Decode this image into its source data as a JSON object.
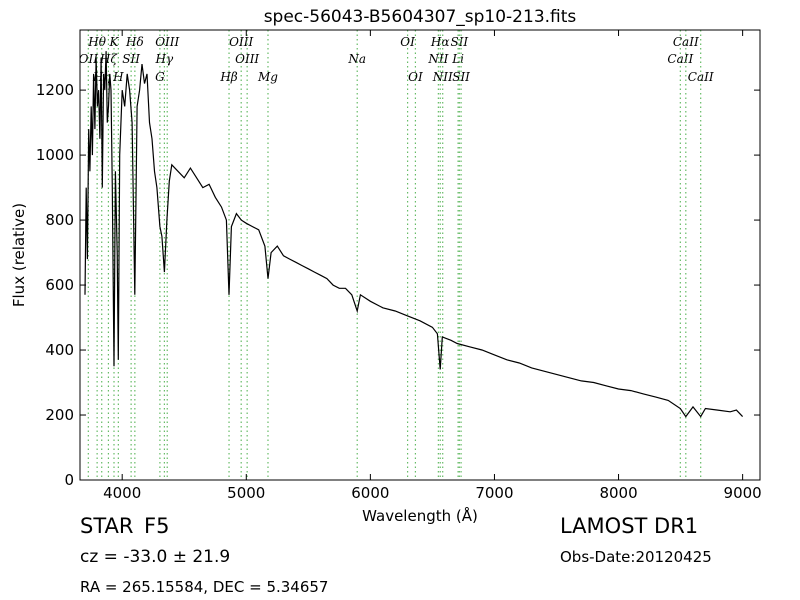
{
  "chart_data": {
    "type": "line",
    "title": "spec-56043-B5604307_sp10-213.fits",
    "x_label": "Wavelength (Å)",
    "y_label": "Flux (relative)",
    "xlim": [
      3660,
      9140
    ],
    "ylim": [
      0,
      1385
    ],
    "xticks": [
      4000,
      5000,
      6000,
      7000,
      8000,
      9000
    ],
    "yticks": [
      0,
      200,
      400,
      600,
      800,
      1000,
      1200
    ],
    "marker_color": "#66bb66",
    "lines": [
      {
        "label": "OII",
        "x": 3727
      },
      {
        "label": "Hθ",
        "x": 3798
      },
      {
        "label": "Hη",
        "x": 3835
      },
      {
        "label": "Hζ",
        "x": 3889
      },
      {
        "label": "K",
        "x": 3934
      },
      {
        "label": "H",
        "x": 3969
      },
      {
        "label": "SII",
        "x": 4072
      },
      {
        "label": "Hδ",
        "x": 4102
      },
      {
        "label": "G",
        "x": 4304
      },
      {
        "label": "Hγ",
        "x": 4340
      },
      {
        "label": "OIII",
        "x": 4363
      },
      {
        "label": "Hβ",
        "x": 4861
      },
      {
        "label": "OIII",
        "x": 4959
      },
      {
        "label": "OIII",
        "x": 5007
      },
      {
        "label": "Mg",
        "x": 5175
      },
      {
        "label": "Na",
        "x": 5894
      },
      {
        "label": "OI",
        "x": 6300
      },
      {
        "label": "OI",
        "x": 6363
      },
      {
        "label": "NII",
        "x": 6548
      },
      {
        "label": "Hα",
        "x": 6563
      },
      {
        "label": "NII",
        "x": 6583
      },
      {
        "label": "Li",
        "x": 6707
      },
      {
        "label": "SII",
        "x": 6717
      },
      {
        "label": "SII",
        "x": 6731
      },
      {
        "label": "CaII",
        "x": 8498
      },
      {
        "label": "CaII",
        "x": 8542
      },
      {
        "label": "CaII",
        "x": 8662
      }
    ],
    "series": [
      {
        "name": "flux",
        "color": "#000000",
        "x": [
          3700,
          3710,
          3720,
          3730,
          3740,
          3750,
          3760,
          3770,
          3780,
          3790,
          3800,
          3810,
          3820,
          3830,
          3840,
          3850,
          3860,
          3870,
          3880,
          3890,
          3900,
          3910,
          3920,
          3934,
          3945,
          3960,
          3969,
          3980,
          4000,
          4020,
          4040,
          4060,
          4080,
          4102,
          4120,
          4140,
          4160,
          4180,
          4200,
          4220,
          4240,
          4260,
          4280,
          4304,
          4320,
          4340,
          4360,
          4380,
          4400,
          4450,
          4500,
          4550,
          4600,
          4650,
          4700,
          4750,
          4800,
          4840,
          4861,
          4880,
          4920,
          4960,
          5000,
          5050,
          5100,
          5150,
          5175,
          5200,
          5250,
          5300,
          5350,
          5400,
          5450,
          5500,
          5550,
          5600,
          5650,
          5700,
          5750,
          5800,
          5850,
          5894,
          5920,
          6000,
          6100,
          6200,
          6300,
          6400,
          6500,
          6540,
          6563,
          6580,
          6650,
          6700,
          6800,
          6900,
          7000,
          7100,
          7200,
          7300,
          7400,
          7500,
          7600,
          7700,
          7800,
          7900,
          8000,
          8100,
          8200,
          8300,
          8400,
          8498,
          8542,
          8600,
          8662,
          8700,
          8800,
          8900,
          8950,
          9000
        ],
        "values": [
          570,
          900,
          680,
          1080,
          950,
          1150,
          1000,
          1250,
          1080,
          1300,
          1150,
          1200,
          1050,
          1300,
          900,
          1250,
          1200,
          1320,
          1100,
          1150,
          1250,
          1200,
          900,
          350,
          950,
          700,
          370,
          1000,
          1200,
          1150,
          1250,
          1200,
          1100,
          570,
          1150,
          1200,
          1280,
          1220,
          1250,
          1100,
          1050,
          950,
          900,
          780,
          750,
          640,
          800,
          920,
          970,
          950,
          930,
          960,
          930,
          900,
          910,
          870,
          840,
          800,
          570,
          780,
          820,
          800,
          790,
          780,
          770,
          720,
          620,
          700,
          720,
          690,
          680,
          670,
          660,
          650,
          640,
          630,
          620,
          600,
          590,
          590,
          570,
          520,
          570,
          550,
          530,
          520,
          505,
          490,
          470,
          450,
          340,
          440,
          430,
          420,
          410,
          400,
          385,
          370,
          360,
          345,
          335,
          325,
          315,
          305,
          300,
          290,
          280,
          275,
          265,
          255,
          245,
          220,
          195,
          225,
          195,
          220,
          215,
          210,
          215,
          195
        ]
      }
    ]
  },
  "footer": {
    "class": "STAR",
    "subclass": "F5",
    "cz": "cz = -33.0 ± 21.9",
    "coords": "RA = 265.15584, DEC = 5.34657",
    "survey": "LAMOST DR1",
    "obs_date": "Obs-Date:20120425"
  }
}
